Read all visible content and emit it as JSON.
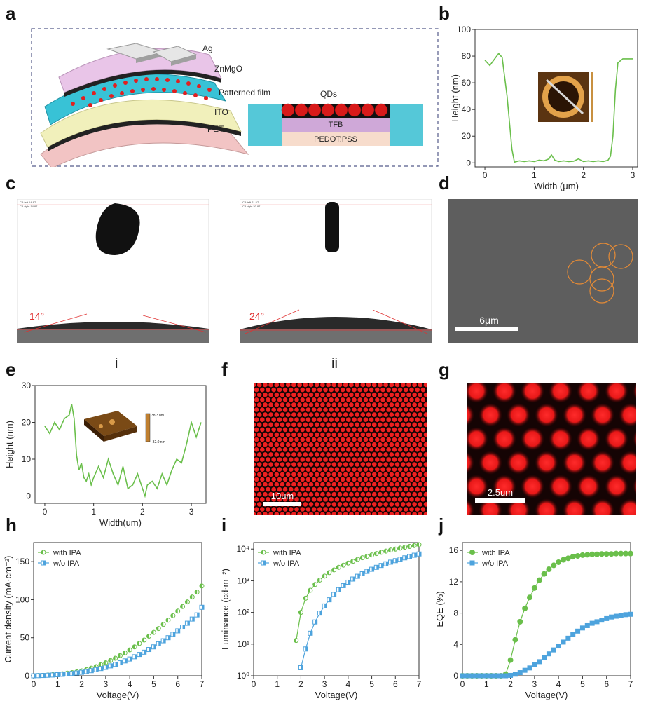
{
  "panels": {
    "a": {
      "letter": "a",
      "layers": [
        "Ag",
        "ZnMgO",
        "Patterned film",
        "ITO",
        "PET"
      ],
      "inset": {
        "top": "QDs",
        "mid": "TFB",
        "bottom": "PEDOT:PSS"
      }
    },
    "b": {
      "letter": "b",
      "chart_data": {
        "type": "line",
        "xlabel": "Width (μm)",
        "ylabel": "Height (nm)",
        "xlim": [
          -0.2,
          3.1
        ],
        "ylim": [
          -3,
          100
        ],
        "xticks": [
          0,
          1,
          2,
          3
        ],
        "yticks": [
          0,
          20,
          40,
          60,
          80,
          100
        ],
        "colors": {
          "line": "#6abf4b"
        },
        "x": [
          0,
          0.1,
          0.2,
          0.28,
          0.35,
          0.45,
          0.55,
          0.6,
          0.7,
          0.8,
          0.9,
          1.0,
          1.1,
          1.2,
          1.3,
          1.35,
          1.42,
          1.5,
          1.6,
          1.7,
          1.8,
          1.9,
          2.0,
          2.1,
          2.2,
          2.3,
          2.4,
          2.5,
          2.55,
          2.6,
          2.65,
          2.7,
          2.8,
          2.9,
          3.0
        ],
        "y": [
          77,
          73,
          78,
          82,
          79,
          50,
          10,
          0.5,
          1.5,
          1,
          1.5,
          1,
          2,
          1.5,
          3,
          6,
          2,
          1,
          1.5,
          1,
          1.2,
          3,
          1,
          1.5,
          1,
          1.5,
          1,
          2,
          5,
          20,
          55,
          75,
          78,
          78,
          78
        ]
      }
    },
    "c": {
      "letter": "c",
      "angle1": "14°",
      "angle2": "24°",
      "roman1": "i",
      "roman2": "ii"
    },
    "d": {
      "letter": "d",
      "scale": "6μm"
    },
    "e": {
      "letter": "e",
      "chart_data": {
        "type": "line",
        "xlabel": "Width(um)",
        "ylabel": "Height (nm)",
        "xlim": [
          -0.2,
          3.3
        ],
        "ylim": [
          -2,
          30
        ],
        "xticks": [
          0,
          1,
          2,
          3
        ],
        "yticks": [
          0,
          10,
          20,
          30
        ],
        "colors": {
          "line": "#6abf4b"
        },
        "inset_scale": {
          "max": "38.3 nm",
          "min": "-32.0 nm"
        },
        "x": [
          0,
          0.1,
          0.2,
          0.3,
          0.4,
          0.5,
          0.55,
          0.6,
          0.65,
          0.7,
          0.75,
          0.8,
          0.85,
          0.9,
          0.95,
          1.0,
          1.1,
          1.2,
          1.3,
          1.4,
          1.5,
          1.6,
          1.7,
          1.8,
          1.9,
          2.0,
          2.05,
          2.1,
          2.2,
          2.3,
          2.4,
          2.5,
          2.6,
          2.7,
          2.8,
          2.9,
          3.0,
          3.1,
          3.2
        ],
        "y": [
          19,
          17,
          20,
          18,
          21,
          22,
          25,
          21,
          11,
          7,
          9,
          5,
          4,
          6,
          3,
          5,
          8,
          5,
          10,
          6,
          3,
          8,
          2,
          3,
          6,
          2,
          0,
          3,
          4,
          2,
          6,
          3,
          7,
          10,
          9,
          14,
          20,
          16,
          20
        ]
      }
    },
    "f": {
      "letter": "f",
      "scale": "10um"
    },
    "g": {
      "letter": "g",
      "scale": "2.5um"
    },
    "h": {
      "letter": "h",
      "chart_data": {
        "type": "scatter",
        "xlabel": "Voltage(V)",
        "ylabel": "Current density (mA·cm⁻²)",
        "xlim": [
          0,
          7
        ],
        "ylim": [
          0,
          175
        ],
        "xticks": [
          0,
          1,
          2,
          3,
          4,
          5,
          6,
          7
        ],
        "yticks": [
          0,
          50,
          100,
          150
        ],
        "legend_position": "top-left",
        "series": [
          {
            "name": "with IPA",
            "color": "#6abf4b",
            "marker": "half-circle",
            "x": [
              0,
              0.2,
              0.4,
              0.6,
              0.8,
              1.0,
              1.2,
              1.4,
              1.6,
              1.8,
              2.0,
              2.2,
              2.4,
              2.6,
              2.8,
              3.0,
              3.2,
              3.4,
              3.6,
              3.8,
              4.0,
              4.2,
              4.4,
              4.6,
              4.8,
              5.0,
              5.2,
              5.4,
              5.6,
              5.8,
              6.0,
              6.2,
              6.4,
              6.6,
              6.8,
              7.0
            ],
            "y": [
              0,
              0.3,
              0.6,
              1,
              1.5,
              2,
              2.7,
              3.4,
              4.2,
              5.2,
              6.5,
              8,
              10,
              12,
              14.5,
              17,
              20,
              23,
              26.5,
              30,
              34,
              38,
              42.5,
              47,
              52,
              57,
              62,
              67.5,
              73,
              79,
              85,
              91,
              97,
              103.5,
              110,
              118
            ]
          },
          {
            "name": "w/o IPA",
            "color": "#4da3dd",
            "marker": "half-square",
            "x": [
              0,
              0.2,
              0.4,
              0.6,
              0.8,
              1.0,
              1.2,
              1.4,
              1.6,
              1.8,
              2.0,
              2.2,
              2.4,
              2.6,
              2.8,
              3.0,
              3.2,
              3.4,
              3.6,
              3.8,
              4.0,
              4.2,
              4.4,
              4.6,
              4.8,
              5.0,
              5.2,
              5.4,
              5.6,
              5.8,
              6.0,
              6.2,
              6.4,
              6.6,
              6.8,
              7.0
            ],
            "y": [
              0,
              0.2,
              0.4,
              0.7,
              1,
              1.4,
              1.9,
              2.4,
              3,
              3.7,
              4.5,
              5.5,
              6.7,
              8,
              9.5,
              11,
              13,
              15,
              17,
              19.5,
              22,
              25,
              28,
              31,
              34.5,
              38,
              42,
              46,
              50,
              54.5,
              59,
              64,
              69,
              74.5,
              80,
              90
            ]
          }
        ]
      }
    },
    "i": {
      "letter": "i",
      "chart_data": {
        "type": "scatter",
        "xlabel": "Voltage(V)",
        "ylabel": "Luminance (cd·m⁻²)",
        "yscale": "log",
        "xlim": [
          0,
          7
        ],
        "ylim": [
          1,
          16000
        ],
        "xticks": [
          0,
          1,
          2,
          3,
          4,
          5,
          6,
          7
        ],
        "ytick_labels": [
          "10⁰",
          "10¹",
          "10²",
          "10³",
          "10⁴"
        ],
        "legend_position": "top-left",
        "series": [
          {
            "name": "with IPA",
            "color": "#6abf4b",
            "marker": "half-circle",
            "x": [
              1.8,
              2.0,
              2.2,
              2.4,
              2.6,
              2.8,
              3.0,
              3.2,
              3.4,
              3.6,
              3.8,
              4.0,
              4.2,
              4.4,
              4.6,
              4.8,
              5.0,
              5.2,
              5.4,
              5.6,
              5.8,
              6.0,
              6.2,
              6.4,
              6.6,
              6.8,
              7.0
            ],
            "y": [
              13,
              100,
              280,
              500,
              760,
              1050,
              1400,
              1800,
              2200,
              2650,
              3100,
              3600,
              4100,
              4700,
              5300,
              5900,
              6500,
              7200,
              7900,
              8600,
              9300,
              10000,
              10700,
              11400,
              12100,
              12900,
              13700
            ]
          },
          {
            "name": "w/o IPA",
            "color": "#4da3dd",
            "marker": "half-square",
            "x": [
              2.0,
              2.2,
              2.4,
              2.6,
              2.8,
              3.0,
              3.2,
              3.4,
              3.6,
              3.8,
              4.0,
              4.2,
              4.4,
              4.6,
              4.8,
              5.0,
              5.2,
              5.4,
              5.6,
              5.8,
              6.0,
              6.2,
              6.4,
              6.6,
              6.8,
              7.0
            ],
            "y": [
              1.8,
              7,
              22,
              50,
              95,
              160,
              250,
              370,
              520,
              700,
              900,
              1130,
              1380,
              1660,
              1970,
              2300,
              2650,
              3030,
              3430,
              3860,
              4300,
              4780,
              5280,
              5820,
              6380,
              7000
            ]
          }
        ]
      }
    },
    "j": {
      "letter": "j",
      "chart_data": {
        "type": "scatter",
        "xlabel": "Voltage(V)",
        "ylabel": "EQE (%)",
        "xlim": [
          0,
          7
        ],
        "ylim": [
          0,
          17
        ],
        "xticks": [
          0,
          1,
          2,
          3,
          4,
          5,
          6,
          7
        ],
        "yticks": [
          0,
          4,
          8,
          12,
          16
        ],
        "legend_position": "top-left",
        "series": [
          {
            "name": "with IPA",
            "color": "#6abf4b",
            "marker": "circle",
            "x": [
              0,
              0.2,
              0.4,
              0.6,
              0.8,
              1.0,
              1.2,
              1.4,
              1.6,
              1.8,
              2.0,
              2.2,
              2.4,
              2.6,
              2.8,
              3.0,
              3.2,
              3.4,
              3.6,
              3.8,
              4.0,
              4.2,
              4.4,
              4.6,
              4.8,
              5.0,
              5.2,
              5.4,
              5.6,
              5.8,
              6.0,
              6.2,
              6.4,
              6.6,
              6.8,
              7.0
            ],
            "y": [
              0,
              0,
              0,
              0,
              0,
              0,
              0,
              0,
              0,
              0.2,
              2,
              4.6,
              6.9,
              8.6,
              10,
              11.2,
              12.2,
              13,
              13.6,
              14.1,
              14.5,
              14.8,
              15,
              15.2,
              15.3,
              15.4,
              15.45,
              15.5,
              15.5,
              15.55,
              15.55,
              15.55,
              15.6,
              15.6,
              15.6,
              15.6
            ]
          },
          {
            "name": "w/o IPA",
            "color": "#4da3dd",
            "marker": "square",
            "x": [
              0,
              0.2,
              0.4,
              0.6,
              0.8,
              1.0,
              1.2,
              1.4,
              1.6,
              1.8,
              2.0,
              2.2,
              2.4,
              2.6,
              2.8,
              3.0,
              3.2,
              3.4,
              3.6,
              3.8,
              4.0,
              4.2,
              4.4,
              4.6,
              4.8,
              5.0,
              5.2,
              5.4,
              5.6,
              5.8,
              6.0,
              6.2,
              6.4,
              6.6,
              6.8,
              7.0
            ],
            "y": [
              0,
              0,
              0,
              0,
              0,
              0,
              0,
              0,
              0,
              0,
              0.05,
              0.2,
              0.4,
              0.7,
              1,
              1.4,
              1.8,
              2.3,
              2.8,
              3.3,
              3.8,
              4.3,
              4.8,
              5.3,
              5.7,
              6.1,
              6.4,
              6.7,
              6.9,
              7.1,
              7.3,
              7.5,
              7.6,
              7.7,
              7.8,
              7.85
            ]
          }
        ]
      }
    }
  }
}
